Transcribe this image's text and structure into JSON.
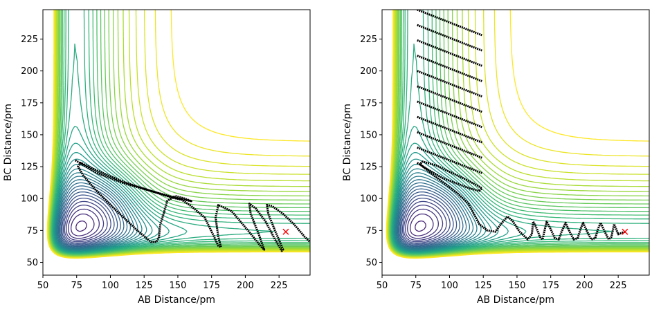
{
  "chart_data": [
    {
      "type": "contour",
      "title": "",
      "xlabel": "AB Distance/pm",
      "ylabel": "BC Distance/pm",
      "xlim": [
        50,
        248
      ],
      "ylim": [
        40,
        248
      ],
      "xticks": [
        50,
        75,
        100,
        125,
        150,
        175,
        200,
        225
      ],
      "yticks": [
        50,
        75,
        100,
        125,
        150,
        175,
        200,
        225
      ],
      "contour_levels": 40,
      "colormap": "viridis",
      "marker": {
        "x": 230,
        "y": 74,
        "symbol": "x",
        "color": "#ff0000"
      },
      "trajectory": {
        "color": "#000000",
        "style": "dotted",
        "points": [
          [
            74,
            130
          ],
          [
            90,
            120
          ],
          [
            110,
            112
          ],
          [
            130,
            106
          ],
          [
            150,
            100
          ],
          [
            160,
            98
          ],
          [
            155,
            100
          ],
          [
            148,
            102
          ],
          [
            142,
            98
          ],
          [
            140,
            90
          ],
          [
            137,
            80
          ],
          [
            136,
            70
          ],
          [
            134,
            66
          ],
          [
            130,
            66
          ],
          [
            120,
            75
          ],
          [
            110,
            85
          ],
          [
            100,
            95
          ],
          [
            88,
            108
          ],
          [
            80,
            118
          ],
          [
            76,
            125
          ],
          [
            78,
            128
          ],
          [
            90,
            122
          ],
          [
            110,
            113
          ],
          [
            130,
            106
          ],
          [
            145,
            101
          ],
          [
            153,
            99
          ],
          [
            160,
            94
          ],
          [
            170,
            85
          ],
          [
            176,
            72
          ],
          [
            180,
            63
          ],
          [
            182,
            62
          ],
          [
            180,
            70
          ],
          [
            178,
            85
          ],
          [
            180,
            95
          ],
          [
            190,
            90
          ],
          [
            202,
            75
          ],
          [
            212,
            62
          ],
          [
            214,
            60
          ],
          [
            210,
            72
          ],
          [
            204,
            88
          ],
          [
            203,
            96
          ],
          [
            208,
            92
          ],
          [
            215,
            82
          ],
          [
            222,
            68
          ],
          [
            227,
            59
          ],
          [
            228,
            60
          ],
          [
            222,
            75
          ],
          [
            217,
            88
          ],
          [
            216,
            95
          ],
          [
            220,
            94
          ],
          [
            228,
            88
          ],
          [
            236,
            80
          ],
          [
            244,
            70
          ],
          [
            248,
            66
          ]
        ]
      }
    },
    {
      "type": "contour",
      "title": "",
      "xlabel": "AB Distance/pm",
      "ylabel": "BC Distance/pm",
      "xlim": [
        50,
        248
      ],
      "ylim": [
        40,
        248
      ],
      "xticks": [
        50,
        75,
        100,
        125,
        150,
        175,
        200,
        225
      ],
      "yticks": [
        50,
        75,
        100,
        125,
        150,
        175,
        200,
        225
      ],
      "contour_levels": 40,
      "colormap": "viridis",
      "marker": {
        "x": 230,
        "y": 74,
        "symbol": "x",
        "color": "#ff0000"
      },
      "trajectory": {
        "color": "#000000",
        "style": "dotted",
        "points": [
          [
            76,
            128
          ],
          [
            85,
            122
          ],
          [
            95,
            116
          ],
          [
            105,
            112
          ],
          [
            115,
            108
          ],
          [
            122,
            106
          ],
          [
            124,
            108
          ],
          [
            121,
            110
          ],
          [
            112,
            115
          ],
          [
            100,
            121
          ],
          [
            90,
            126
          ],
          [
            80,
            129
          ],
          [
            78,
            127
          ],
          [
            86,
            120
          ],
          [
            96,
            112
          ],
          [
            106,
            104
          ],
          [
            114,
            96
          ],
          [
            118,
            88
          ],
          [
            122,
            80
          ],
          [
            128,
            75
          ],
          [
            134,
            74
          ],
          [
            138,
            80
          ],
          [
            143,
            86
          ],
          [
            147,
            82
          ],
          [
            152,
            74
          ],
          [
            158,
            68
          ],
          [
            161,
            72
          ],
          [
            162,
            82
          ],
          [
            164,
            78
          ],
          [
            167,
            70
          ],
          [
            169,
            68
          ],
          [
            170,
            73
          ],
          [
            172,
            82
          ],
          [
            175,
            76
          ],
          [
            178,
            69
          ],
          [
            181,
            68
          ],
          [
            183,
            74
          ],
          [
            186,
            81
          ],
          [
            189,
            74
          ],
          [
            192,
            68
          ],
          [
            195,
            69
          ],
          [
            197,
            76
          ],
          [
            199,
            81
          ],
          [
            202,
            74
          ],
          [
            205,
            68
          ],
          [
            208,
            69
          ],
          [
            210,
            76
          ],
          [
            212,
            81
          ],
          [
            215,
            74
          ],
          [
            218,
            68
          ],
          [
            220,
            70
          ],
          [
            222,
            80
          ],
          [
            225,
            72
          ],
          [
            230,
            74
          ]
        ]
      },
      "oscillation_band": {
        "x_range": [
          76,
          124
        ],
        "y_range": [
          100,
          248
        ]
      }
    }
  ]
}
